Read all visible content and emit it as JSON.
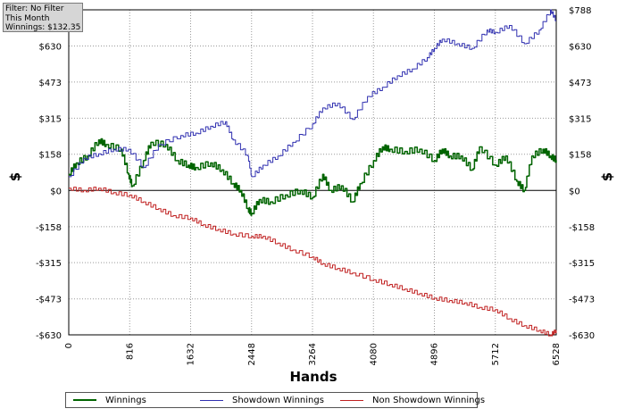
{
  "filter_box": {
    "line1": "Filter: No Filter",
    "line2": "This Month",
    "line3": "Winnings: $132.35"
  },
  "chart_data": {
    "type": "line",
    "xlabel": "Hands",
    "ylabel": "$",
    "xlim": [
      0,
      6528
    ],
    "ylim": [
      -630,
      788
    ],
    "grid": true,
    "legend_position": "bottom",
    "x_ticks": [
      "0",
      "816",
      "1632",
      "2448",
      "3264",
      "4080",
      "4896",
      "5712",
      "6528"
    ],
    "y_ticks": [
      {
        "value": -630,
        "label": "-$630"
      },
      {
        "value": -473,
        "label": "-$473"
      },
      {
        "value": -315,
        "label": "-$315"
      },
      {
        "value": -158,
        "label": "-$158"
      },
      {
        "value": 0,
        "label": "$0"
      },
      {
        "value": 158,
        "label": "$158"
      },
      {
        "value": 315,
        "label": "$315"
      },
      {
        "value": 473,
        "label": "$473"
      },
      {
        "value": 630,
        "label": "$630"
      }
    ],
    "right_top_label": "$788",
    "series": [
      {
        "name": "Winnings",
        "color": "#006400",
        "x": [
          0,
          100,
          250,
          400,
          500,
          700,
          800,
          850,
          1000,
          1100,
          1300,
          1450,
          1600,
          1700,
          1900,
          2050,
          2200,
          2300,
          2400,
          2448,
          2550,
          2700,
          2900,
          3100,
          3264,
          3400,
          3500,
          3650,
          3800,
          3900,
          4080,
          4200,
          4300,
          4500,
          4700,
          4896,
          5000,
          5100,
          5250,
          5400,
          5500,
          5712,
          5850,
          6000,
          6100,
          6200,
          6350,
          6450,
          6528
        ],
        "y": [
          70,
          120,
          150,
          220,
          200,
          180,
          70,
          20,
          130,
          210,
          200,
          130,
          110,
          100,
          120,
          90,
          30,
          0,
          -80,
          -100,
          -40,
          -50,
          -20,
          0,
          -30,
          70,
          0,
          20,
          -50,
          30,
          130,
          190,
          180,
          170,
          180,
          130,
          180,
          150,
          150,
          90,
          190,
          110,
          150,
          40,
          0,
          150,
          180,
          150,
          132
        ]
      },
      {
        "name": "Showdown Winnings",
        "color": "#3030b0",
        "x": [
          0,
          200,
          400,
          600,
          800,
          1000,
          1200,
          1500,
          1700,
          1900,
          2100,
          2200,
          2400,
          2448,
          2600,
          2800,
          3000,
          3264,
          3400,
          3600,
          3800,
          4000,
          4200,
          4400,
          4600,
          4800,
          4896,
          5000,
          5200,
          5400,
          5600,
          5712,
          5900,
          6100,
          6300,
          6450,
          6528
        ],
        "y": [
          60,
          140,
          160,
          180,
          180,
          100,
          200,
          240,
          250,
          280,
          300,
          220,
          150,
          60,
          110,
          150,
          210,
          290,
          360,
          380,
          310,
          410,
          450,
          500,
          530,
          580,
          620,
          660,
          640,
          620,
          700,
          690,
          720,
          640,
          700,
          788,
          740
        ]
      },
      {
        "name": "Non Showdown Winnings",
        "color": "#c02020",
        "x": [
          0,
          200,
          400,
          600,
          816,
          1000,
          1200,
          1400,
          1632,
          1800,
          2000,
          2200,
          2448,
          2600,
          2800,
          3000,
          3264,
          3400,
          3600,
          3800,
          4080,
          4300,
          4500,
          4700,
          4896,
          5100,
          5300,
          5500,
          5712,
          5900,
          6100,
          6300,
          6450,
          6528
        ],
        "y": [
          10,
          0,
          10,
          -10,
          -20,
          -50,
          -80,
          -110,
          -120,
          -150,
          -170,
          -190,
          -200,
          -200,
          -230,
          -260,
          -290,
          -320,
          -340,
          -360,
          -390,
          -410,
          -430,
          -450,
          -470,
          -480,
          -490,
          -510,
          -520,
          -560,
          -590,
          -610,
          -630,
          -610
        ]
      }
    ]
  }
}
